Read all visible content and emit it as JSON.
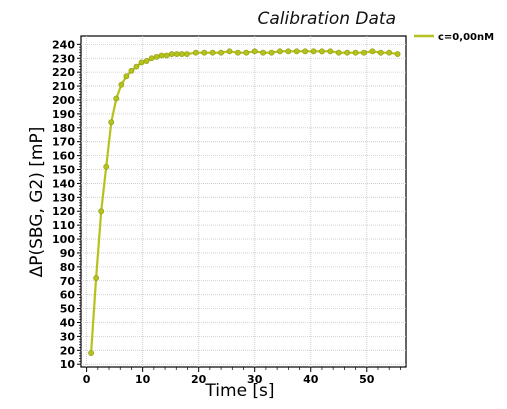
{
  "chart_data": {
    "type": "line",
    "title": "Calibration Data",
    "xlabel": "Time [s]",
    "ylabel": "ΔP(SBG, G2) [mP]",
    "xlim": [
      -1,
      57
    ],
    "ylim": [
      8,
      246
    ],
    "xticks": [
      "0",
      "10",
      "20",
      "30",
      "40",
      "50"
    ],
    "xtick_values": [
      0,
      10,
      20,
      30,
      40,
      50
    ],
    "yticks": [
      "10",
      "20",
      "30",
      "40",
      "50",
      "60",
      "70",
      "80",
      "90",
      "100",
      "110",
      "120",
      "130",
      "140",
      "150",
      "160",
      "170",
      "180",
      "190",
      "200",
      "210",
      "220",
      "230",
      "240"
    ],
    "ytick_values": [
      10,
      20,
      30,
      40,
      50,
      60,
      70,
      80,
      90,
      100,
      110,
      120,
      130,
      140,
      150,
      160,
      170,
      180,
      190,
      200,
      210,
      220,
      230,
      240
    ],
    "grid": true,
    "legend_position": "top-right",
    "colors": {
      "series": "#b5c21b",
      "fit": "#9a9a9a",
      "grid": "#c8c8c8"
    },
    "series": [
      {
        "name": "c=0,00nM",
        "x": [
          0.8,
          1.7,
          2.6,
          3.5,
          4.4,
          5.3,
          6.2,
          7.1,
          8.0,
          8.9,
          9.8,
          10.7,
          11.6,
          12.5,
          13.4,
          14.3,
          15.2,
          16.1,
          17.0,
          17.9,
          19.5,
          21.0,
          22.5,
          24.0,
          25.5,
          27.0,
          28.5,
          30.0,
          31.5,
          33.0,
          34.5,
          36.0,
          37.5,
          39.0,
          40.5,
          42.0,
          43.5,
          45.0,
          46.5,
          48.0,
          49.5,
          51.0,
          52.5,
          54.0,
          55.5
        ],
        "y": [
          18,
          72,
          120,
          152,
          184,
          201,
          211,
          217,
          221,
          224,
          227,
          228,
          230,
          231,
          232,
          232,
          233,
          233,
          233,
          233,
          234,
          234,
          234,
          234,
          235,
          234,
          234,
          235,
          234,
          234,
          235,
          235,
          235,
          235,
          235,
          235,
          235,
          234,
          234,
          234,
          234,
          235,
          234,
          234,
          233
        ]
      }
    ]
  }
}
